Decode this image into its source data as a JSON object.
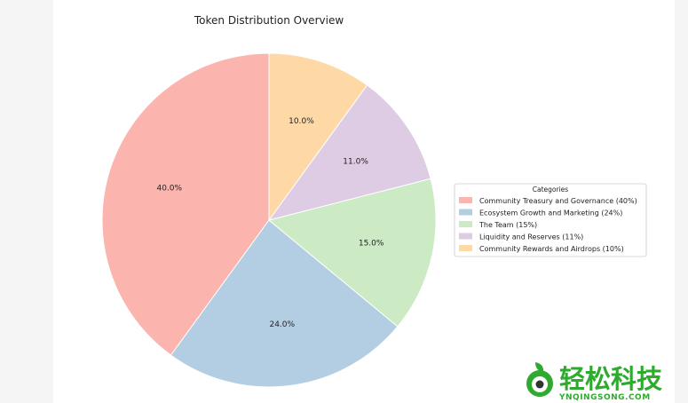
{
  "chart_data": {
    "type": "pie",
    "title": "Token Distribution Overview",
    "categories": [
      "Community Treasury and Governance",
      "Ecosystem Growth and Marketing",
      "The Team",
      "Liquidity and Reserves",
      "Community Rewards and Airdrops"
    ],
    "values": [
      40,
      24,
      15,
      11,
      10
    ],
    "labels": [
      "40.0%",
      "24.0%",
      "15.0%",
      "11.0%",
      "10.0%"
    ],
    "colors": [
      "#fbb4ae",
      "#b3cde3",
      "#ccebc5",
      "#decbe4",
      "#fed9a6"
    ],
    "legend": {
      "title": "Categories",
      "placement": "right",
      "entries": [
        "Community Treasury and Governance (40%)",
        "Ecosystem Growth and Marketing (24%)",
        "The Team (15%)",
        "Liquidity and Reserves (11%)",
        "Community Rewards and Airdrops (10%)"
      ]
    },
    "start_angle": "top",
    "direction": "counterclockwise"
  },
  "watermark": {
    "text": "轻松科技",
    "subtext": "YNQINGSONG.COM"
  }
}
